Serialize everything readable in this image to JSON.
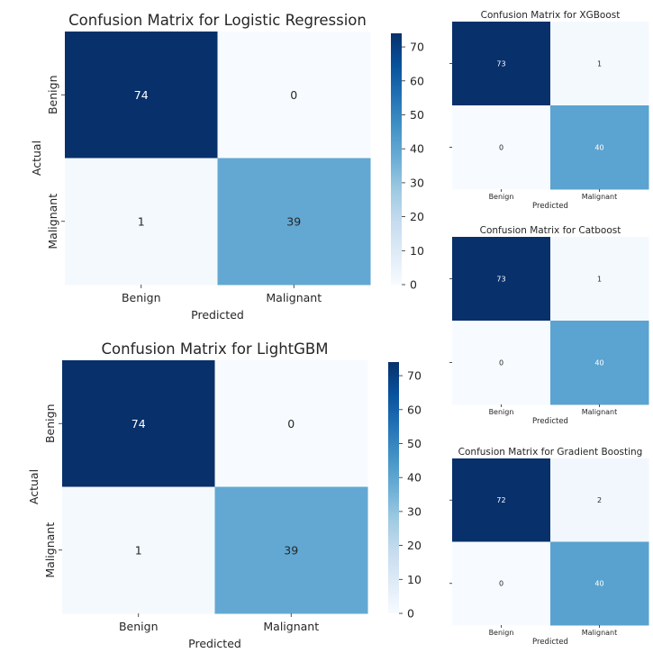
{
  "chart_data": [
    {
      "type": "heatmap",
      "title": "Confusion Matrix for Logistic Regression",
      "xlabel": "Predicted",
      "ylabel": "Actual",
      "x_categories": [
        "Benign",
        "Malignant"
      ],
      "y_categories": [
        "Benign",
        "Malignant"
      ],
      "values": [
        [
          74,
          0
        ],
        [
          1,
          39
        ]
      ],
      "colorbar": true,
      "colorbar_ticks": [
        0,
        10,
        20,
        30,
        40,
        50,
        60,
        70
      ],
      "colormap": "Blues",
      "vmin": 0,
      "vmax": 74
    },
    {
      "type": "heatmap",
      "title": "Confusion Matrix for XGBoost",
      "xlabel": "Predicted",
      "ylabel": "",
      "x_categories": [
        "Benign",
        "Malignant"
      ],
      "y_categories": [
        "",
        ""
      ],
      "values": [
        [
          73,
          1
        ],
        [
          0,
          40
        ]
      ],
      "colorbar": false,
      "colormap": "Blues",
      "vmin": 0,
      "vmax": 73
    },
    {
      "type": "heatmap",
      "title": "Confusion Matrix for Catboost",
      "xlabel": "Predicted",
      "ylabel": "",
      "x_categories": [
        "Benign",
        "Malignant"
      ],
      "y_categories": [
        "",
        ""
      ],
      "values": [
        [
          73,
          1
        ],
        [
          0,
          40
        ]
      ],
      "colorbar": false,
      "colormap": "Blues",
      "vmin": 0,
      "vmax": 73
    },
    {
      "type": "heatmap",
      "title": "Confusion Matrix for LightGBM",
      "xlabel": "Predicted",
      "ylabel": "Actual",
      "x_categories": [
        "Benign",
        "Malignant"
      ],
      "y_categories": [
        "Benign",
        "Malignant"
      ],
      "values": [
        [
          74,
          0
        ],
        [
          1,
          39
        ]
      ],
      "colorbar": true,
      "colorbar_ticks": [
        0,
        10,
        20,
        30,
        40,
        50,
        60,
        70
      ],
      "colormap": "Blues",
      "vmin": 0,
      "vmax": 74
    },
    {
      "type": "heatmap",
      "title": "Confusion Matrix for Gradient Boosting",
      "xlabel": "Predicted",
      "ylabel": "",
      "x_categories": [
        "Benign",
        "Malignant"
      ],
      "y_categories": [
        "",
        ""
      ],
      "values": [
        [
          72,
          2
        ],
        [
          0,
          40
        ]
      ],
      "colorbar": false,
      "colormap": "Blues",
      "vmin": 0,
      "vmax": 72
    }
  ]
}
